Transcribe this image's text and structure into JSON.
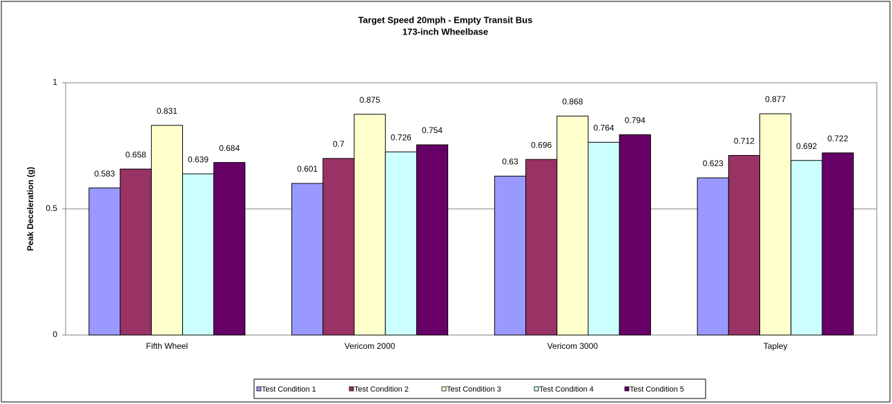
{
  "chart_data": {
    "type": "bar",
    "title": "Target Speed 20mph - Empty Transit Bus",
    "subtitle": "173-inch Wheelbase",
    "y_label": "Peak Deceleration (g)",
    "categories": [
      "Fifth Wheel",
      "Vericom 2000",
      "Vericom 3000",
      "Tapley"
    ],
    "series": [
      {
        "name": "Test Condition 1",
        "color": "#9999ff",
        "values": [
          0.583,
          0.601,
          0.63,
          0.623
        ]
      },
      {
        "name": "Test Condition 2",
        "color": "#993366",
        "values": [
          0.658,
          0.7,
          0.696,
          0.712
        ]
      },
      {
        "name": "Test Condition 3",
        "color": "#ffffcc",
        "values": [
          0.831,
          0.875,
          0.868,
          0.877
        ]
      },
      {
        "name": "Test Condition 4",
        "color": "#ccffff",
        "values": [
          0.639,
          0.726,
          0.764,
          0.692
        ]
      },
      {
        "name": "Test Condition 5",
        "color": "#660066",
        "values": [
          0.684,
          0.754,
          0.794,
          0.722
        ]
      }
    ],
    "ylim": [
      0,
      1
    ],
    "yticks": [
      0,
      0.5,
      1
    ],
    "grid": true,
    "legend": "bottom"
  }
}
